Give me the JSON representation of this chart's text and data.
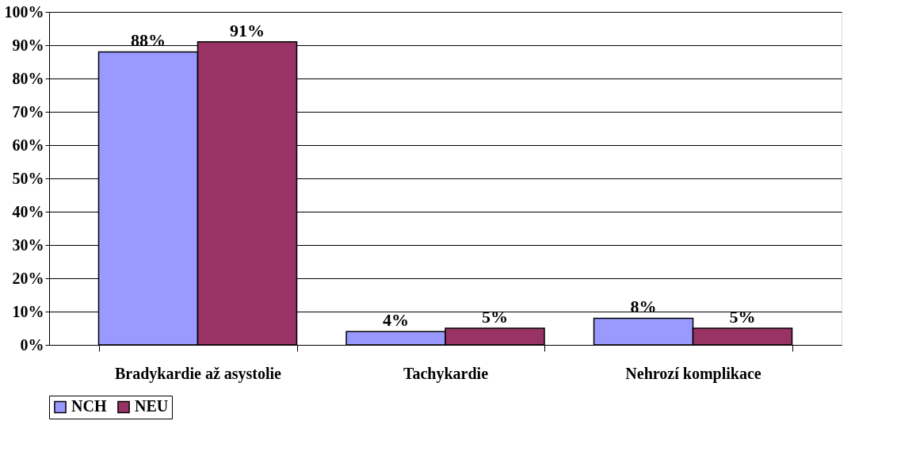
{
  "chart_data": {
    "type": "bar",
    "categories": [
      "Bradykardie až asystolie",
      "Tachykardie",
      "Nehrozí komplikace"
    ],
    "series": [
      {
        "name": "NCH",
        "color": "#9999ff",
        "values": [
          88,
          4,
          8
        ],
        "value_labels": [
          "88%",
          "4%",
          "8%"
        ]
      },
      {
        "name": "NEU",
        "color": "#993366",
        "values": [
          91,
          5,
          5
        ],
        "value_labels": [
          "91%",
          "5%",
          "5%"
        ]
      }
    ],
    "ylim": [
      0,
      100
    ],
    "yticks": [
      {
        "value": 0,
        "label": "0%"
      },
      {
        "value": 10,
        "label": "10%"
      },
      {
        "value": 20,
        "label": "20%"
      },
      {
        "value": 30,
        "label": "30%"
      },
      {
        "value": 40,
        "label": "40%"
      },
      {
        "value": 50,
        "label": "50%"
      },
      {
        "value": 60,
        "label": "60%"
      },
      {
        "value": 70,
        "label": "70%"
      },
      {
        "value": 80,
        "label": "80%"
      },
      {
        "value": 90,
        "label": "90%"
      },
      {
        "value": 100,
        "label": "100%"
      }
    ],
    "grid": "y",
    "legend": "bottom"
  }
}
